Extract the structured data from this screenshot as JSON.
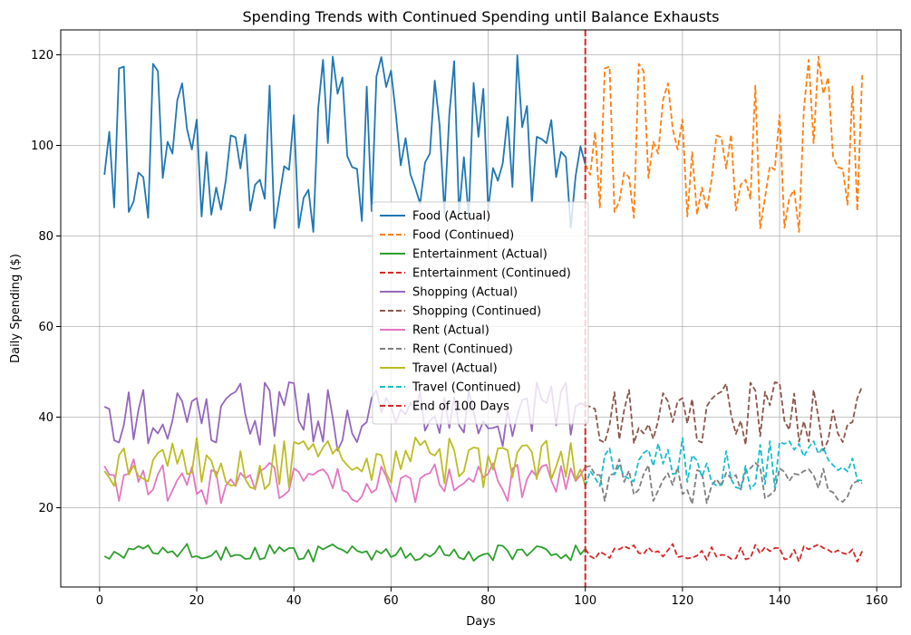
{
  "chart_data": {
    "type": "line",
    "title": "Spending Trends with Continued Spending until Balance Exhausts",
    "xlabel": "Days",
    "ylabel": "Daily Spending ($)",
    "xlim": [
      -8,
      165
    ],
    "ylim": [
      2.5,
      125.5
    ],
    "xticks": [
      0,
      20,
      40,
      60,
      80,
      100,
      120,
      140,
      160
    ],
    "yticks": [
      20,
      40,
      60,
      80,
      100,
      120
    ],
    "grid": true,
    "legend_position": "center",
    "vline": {
      "x": 100,
      "label": "End of 100 Days",
      "color": "#d62728",
      "style": "dashed"
    },
    "series": [
      {
        "name": "Food (Actual)",
        "color": "#1f77b4",
        "style": "solid",
        "x_start": 1,
        "values": [
          93.5,
          103,
          86.3,
          117,
          117.4,
          85.3,
          87.6,
          94,
          93,
          84,
          118,
          116.4,
          92.8,
          100.8,
          98.2,
          110,
          113.7,
          103.6,
          99.1,
          105.7,
          84.3,
          98.5,
          84.7,
          90.7,
          85.8,
          92.4,
          102.2,
          101.8,
          94.9,
          102.4,
          85.6,
          91.3,
          92.4,
          88.2,
          113.2,
          81.7,
          88.5,
          95.4,
          94.6,
          106.7,
          81.8,
          88.4,
          90.2,
          80.9,
          108.1,
          118.9,
          100.5,
          119.6,
          111.4,
          115,
          97.6,
          95.2,
          94.8,
          83.3,
          113,
          85.5,
          115.2,
          119.5,
          112.9,
          116.5,
          106.9,
          95.6,
          101.6,
          93.6,
          90.6,
          87.1,
          96.2,
          98.2,
          114.3,
          104.5,
          85,
          106.8,
          118.6,
          84.9,
          97.4,
          84.1,
          113.8,
          101.9,
          112.5,
          85.8,
          95,
          92.2,
          96,
          106.3,
          90.8,
          119.9,
          104,
          108.7,
          87.4,
          101.9,
          101.4,
          100.5,
          105.6,
          93,
          98.6,
          97.4,
          81.8,
          93.2,
          99.8,
          95.8
        ]
      },
      {
        "name": "Food (Continued)",
        "color": "#ff7f0e",
        "style": "dashed",
        "x_start": 100,
        "values": [
          95.8,
          93.5,
          103,
          86.3,
          117,
          117.4,
          85.3,
          87.6,
          94,
          93,
          84,
          118,
          116.4,
          92.8,
          100.8,
          98.2,
          110,
          113.7,
          103.6,
          99.1,
          105.7,
          84.3,
          98.5,
          84.7,
          90.7,
          85.8,
          92.4,
          102.2,
          101.8,
          94.9,
          102.4,
          85.6,
          91.3,
          92.4,
          88.2,
          113.2,
          81.7,
          88.5,
          95.4,
          94.6,
          106.7,
          81.8,
          88.4,
          90.2,
          80.9,
          108.1,
          118.9,
          100.5,
          119.6,
          111.4,
          115,
          97.6,
          95.2,
          94.8,
          86.9,
          113,
          85.5,
          115.5
        ]
      },
      {
        "name": "Entertainment (Actual)",
        "color": "#2ca02c",
        "style": "solid",
        "x_start": 1,
        "values": [
          9.3,
          8.7,
          10.3,
          9.7,
          8.9,
          11,
          10.8,
          11.5,
          11,
          11.7,
          10,
          9.8,
          11.2,
          10.1,
          10.4,
          9.2,
          10.6,
          12,
          9.1,
          9.3,
          8.8,
          9,
          9.4,
          10.5,
          8.5,
          11.3,
          9.2,
          9.6,
          9.5,
          8.7,
          8.8,
          11.2,
          8.6,
          8.9,
          11.8,
          9.9,
          11.3,
          10.4,
          11.1,
          11.1,
          8.6,
          8.8,
          10.7,
          8.1,
          11.5,
          10.8,
          11.4,
          11.9,
          11.1,
          10.7,
          10,
          11.5,
          10.5,
          10.1,
          10.4,
          8.5,
          10.5,
          9.9,
          10.9,
          9.1,
          9.6,
          11.2,
          8.9,
          9.9,
          8.4,
          8.7,
          9.8,
          9.2,
          10,
          11.6,
          9.6,
          9.4,
          10.8,
          9,
          8.6,
          10.3,
          8.3,
          9.2,
          9.7,
          9.9,
          8.4,
          11.7,
          11.6,
          10.5,
          8.6,
          10.7,
          10.8,
          9.4,
          10.4,
          11.5,
          11.3,
          10.8,
          9.5,
          9.8,
          8.8,
          9.6,
          8.4,
          11.7,
          9.7,
          10.9
        ]
      },
      {
        "name": "Entertainment (Continued)",
        "color": "#d62728",
        "style": "dashed",
        "x_start": 100,
        "values": [
          10.9,
          9.3,
          8.7,
          10.3,
          9.7,
          8.9,
          11,
          10.8,
          11.5,
          11,
          11.7,
          10,
          9.8,
          11.2,
          10.1,
          10.4,
          9.2,
          10.6,
          12,
          9.1,
          9.3,
          8.8,
          9,
          9.4,
          10.5,
          8.5,
          11.3,
          9.2,
          9.6,
          9.5,
          8.7,
          8.8,
          11.2,
          8.6,
          8.9,
          11.8,
          9.9,
          11.3,
          10.4,
          11.1,
          11.1,
          8.6,
          8.8,
          10.7,
          8.1,
          11.5,
          10.8,
          11.4,
          11.9,
          11.1,
          10.7,
          10,
          10.6,
          10,
          9.7,
          10.8,
          8.1,
          10.4
        ]
      },
      {
        "name": "Shopping (Actual)",
        "color": "#9467bd",
        "style": "solid",
        "x_start": 1,
        "values": [
          42.3,
          41.8,
          34.9,
          34.4,
          38.3,
          45.5,
          35.1,
          41.6,
          46,
          34.2,
          37.6,
          36.4,
          38.4,
          35.2,
          39.2,
          45.3,
          43.5,
          38.9,
          43.5,
          44.2,
          38.6,
          44,
          34.9,
          34.4,
          42.4,
          44,
          45,
          45.6,
          47.4,
          40.6,
          36.3,
          39.2,
          33.9,
          47.6,
          45.9,
          35.8,
          45.6,
          42.6,
          47.7,
          47.5,
          39.2,
          37.2,
          45.2,
          34.6,
          39.1,
          34.6,
          46,
          39.9,
          32.6,
          34.9,
          41.5,
          36.4,
          34.5,
          38,
          38.9,
          44.2,
          46,
          41,
          44.3,
          42.4,
          38.8,
          41.7,
          40.6,
          43.2,
          41.4,
          45.6,
          37,
          39.2,
          40.2,
          36.5,
          44.3,
          37.6,
          44.4,
          38.2,
          36.6,
          45.8,
          41.2,
          36.4,
          39.1,
          37.5,
          37.6,
          38,
          33.6,
          41.7,
          35.8,
          40.4,
          43.8,
          44.1,
          36.9,
          47.7,
          43.9,
          43.1,
          46.8,
          38.2,
          45.7,
          47.6,
          36.1,
          42.4,
          43.1,
          42.6
        ]
      },
      {
        "name": "Shopping (Continued)",
        "color": "#8c564b",
        "style": "dashed",
        "x_start": 100,
        "values": [
          42.6,
          42.3,
          41.8,
          34.9,
          34.4,
          38.3,
          45.5,
          35.1,
          41.6,
          46,
          34.2,
          37.6,
          36.4,
          38.4,
          35.2,
          39.2,
          45.3,
          43.5,
          38.9,
          43.5,
          44.2,
          38.6,
          44,
          34.9,
          34.4,
          42.4,
          44,
          45,
          45.6,
          47.4,
          40.6,
          36.3,
          39.2,
          33.9,
          47.6,
          45.9,
          35.8,
          45.6,
          42.6,
          47.7,
          47.5,
          39.2,
          37.2,
          45.2,
          34.6,
          39.1,
          34.6,
          46,
          39.9,
          32.6,
          34.9,
          41.5,
          36.4,
          34.5,
          38.4,
          38.9,
          44.2,
          46.8
        ]
      },
      {
        "name": "Rent (Actual)",
        "color": "#e377c2",
        "style": "solid",
        "x_start": 1,
        "values": [
          29.2,
          27.3,
          27.2,
          21.5,
          27.2,
          27.5,
          30.7,
          25.7,
          28.2,
          22.9,
          24,
          27.4,
          29.4,
          21.5,
          23.8,
          26.1,
          27.6,
          25,
          29,
          23,
          23.9,
          20.8,
          28.3,
          27.9,
          21,
          24.9,
          26.3,
          24.8,
          27.7,
          26.5,
          27.2,
          24,
          28.1,
          28.7,
          29.9,
          28.9,
          22.1,
          22.8,
          23.8,
          28.7,
          27.9,
          25.9,
          27.5,
          27.3,
          28.1,
          28.5,
          27.2,
          24.3,
          28.6,
          23.9,
          23.4,
          21.8,
          21.3,
          22.5,
          25.3,
          23.3,
          24.1,
          29.1,
          26.9,
          23.9,
          21.3,
          26.5,
          27.1,
          26.5,
          21.2,
          26.4,
          27.3,
          27.6,
          29.6,
          25.1,
          23.6,
          28.5,
          23.8,
          24.7,
          25.4,
          26.5,
          25.7,
          29.1,
          26.7,
          27.5,
          29.8,
          25.9,
          24,
          21.5,
          28.6,
          29.5,
          22.3,
          26.3,
          28.2,
          26.9,
          29.1,
          29.5,
          26,
          23.5,
          29.2,
          24.1,
          28.7,
          25.9,
          27.2,
          29
        ]
      },
      {
        "name": "Rent (Continued)",
        "color": "#7f7f7f",
        "style": "dashed",
        "x_start": 100,
        "values": [
          29,
          29.2,
          27.3,
          27.2,
          21.5,
          27.2,
          27.5,
          30.7,
          25.7,
          28.2,
          22.9,
          24,
          27.4,
          29.4,
          21.5,
          23.8,
          26.1,
          27.6,
          25,
          29,
          23,
          23.9,
          20.8,
          28.3,
          27.9,
          21,
          24.9,
          26.3,
          24.8,
          27.7,
          26.5,
          27.2,
          24,
          28.1,
          28.7,
          29.9,
          28.9,
          22.1,
          22.8,
          23.8,
          28.7,
          27.9,
          25.9,
          27.5,
          27.3,
          28.1,
          28.5,
          27.2,
          24.3,
          28.6,
          23.9,
          23.4,
          21.8,
          21.3,
          22.5,
          25.3,
          25.9,
          25.4
        ]
      },
      {
        "name": "Travel (Actual)",
        "color": "#bcbd22",
        "style": "solid",
        "x_start": 1,
        "values": [
          28.1,
          26.6,
          24.8,
          31.6,
          33.1,
          27.3,
          29.3,
          27,
          26.4,
          25.8,
          30.5,
          32.1,
          32.8,
          29.2,
          34.2,
          29.7,
          32.8,
          27.4,
          27.8,
          35.4,
          25.7,
          31.6,
          30.4,
          26.8,
          29.8,
          25.7,
          24.9,
          25,
          32.5,
          26.3,
          24.5,
          24.2,
          29.3,
          24.1,
          25.3,
          33.9,
          25.2,
          34.7,
          24.5,
          34.5,
          34.1,
          34.7,
          32.8,
          34.1,
          31.3,
          33.3,
          34.7,
          31.9,
          33.3,
          30.6,
          29.4,
          28.3,
          28.9,
          28,
          30.9,
          26.1,
          31.9,
          31.6,
          27.6,
          25.5,
          32.5,
          28.5,
          32.6,
          30.2,
          35.5,
          33.8,
          34.8,
          32.1,
          31.5,
          33,
          25.4,
          35.3,
          32.7,
          26.9,
          28,
          32.7,
          33.3,
          33.1,
          24.5,
          31.5,
          28.4,
          33.1,
          33.2,
          32.7,
          26.7,
          32.2,
          33.7,
          33.8,
          32.3,
          26.3,
          33.6,
          34.8,
          26.3,
          29.1,
          32.4,
          26.8,
          34.3,
          26.2,
          28.5,
          24.7
        ]
      },
      {
        "name": "Travel (Continued)",
        "color": "#17becf",
        "style": "dashed",
        "x_start": 100,
        "values": [
          24.7,
          28.1,
          26.6,
          24.8,
          31.6,
          33.1,
          27.3,
          29.3,
          27,
          26.4,
          25.8,
          30.5,
          32.1,
          32.8,
          29.2,
          34.2,
          29.7,
          32.8,
          27.4,
          27.8,
          35.4,
          25.7,
          31.6,
          30.4,
          26.8,
          29.8,
          25.7,
          24.9,
          25,
          32.5,
          26.3,
          24.5,
          24.2,
          29.3,
          24.1,
          25.3,
          33.9,
          25.2,
          34.7,
          24.5,
          34.5,
          34.1,
          34.7,
          32.8,
          34.1,
          31.3,
          33.3,
          34.7,
          31.9,
          33.3,
          30.6,
          29.4,
          28.3,
          28.9,
          28,
          30.9,
          26.1,
          26
        ]
      }
    ]
  }
}
